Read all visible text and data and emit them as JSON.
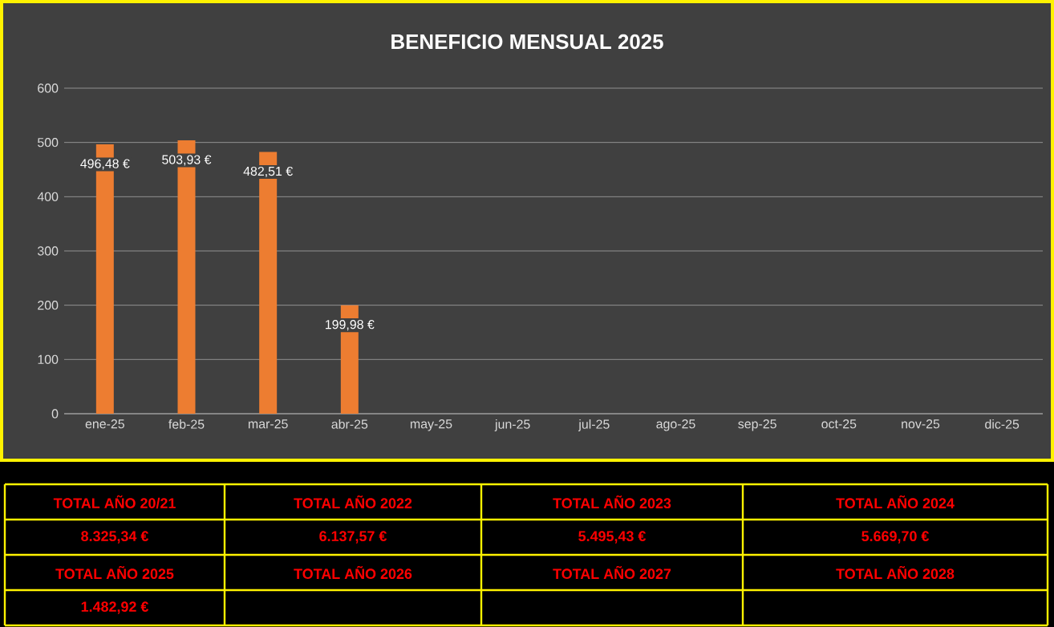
{
  "chart_data": {
    "type": "bar",
    "title": "BENEFICIO MENSUAL 2025",
    "categories": [
      "ene-25",
      "feb-25",
      "mar-25",
      "abr-25",
      "may-25",
      "jun-25",
      "jul-25",
      "ago-25",
      "sep-25",
      "oct-25",
      "nov-25",
      "dic-25"
    ],
    "values": [
      496.48,
      503.93,
      482.51,
      199.98,
      null,
      null,
      null,
      null,
      null,
      null,
      null,
      null
    ],
    "value_labels": [
      "496,48 €",
      "503,93 €",
      "482,51 €",
      "199,98 €",
      null,
      null,
      null,
      null,
      null,
      null,
      null,
      null
    ],
    "color": "#ed7d31",
    "ylim": [
      0,
      600
    ],
    "yticks": [
      0,
      100,
      200,
      300,
      400,
      500,
      600
    ],
    "grid": "y",
    "annotations": [
      "TOTAL AÑO 20/21",
      "TOTAL AÑO 2022",
      "TOTAL AÑO 2023",
      "TOTAL AÑO 2024",
      "8.325,34 €",
      "6.137,57 €",
      "5.495,43 €",
      "5.669,70 €",
      "TOTAL AÑO 2025",
      "TOTAL AÑO 2026",
      "TOTAL AÑO 2027",
      "TOTAL AÑO 2028",
      "1.482,92 €"
    ]
  }
}
